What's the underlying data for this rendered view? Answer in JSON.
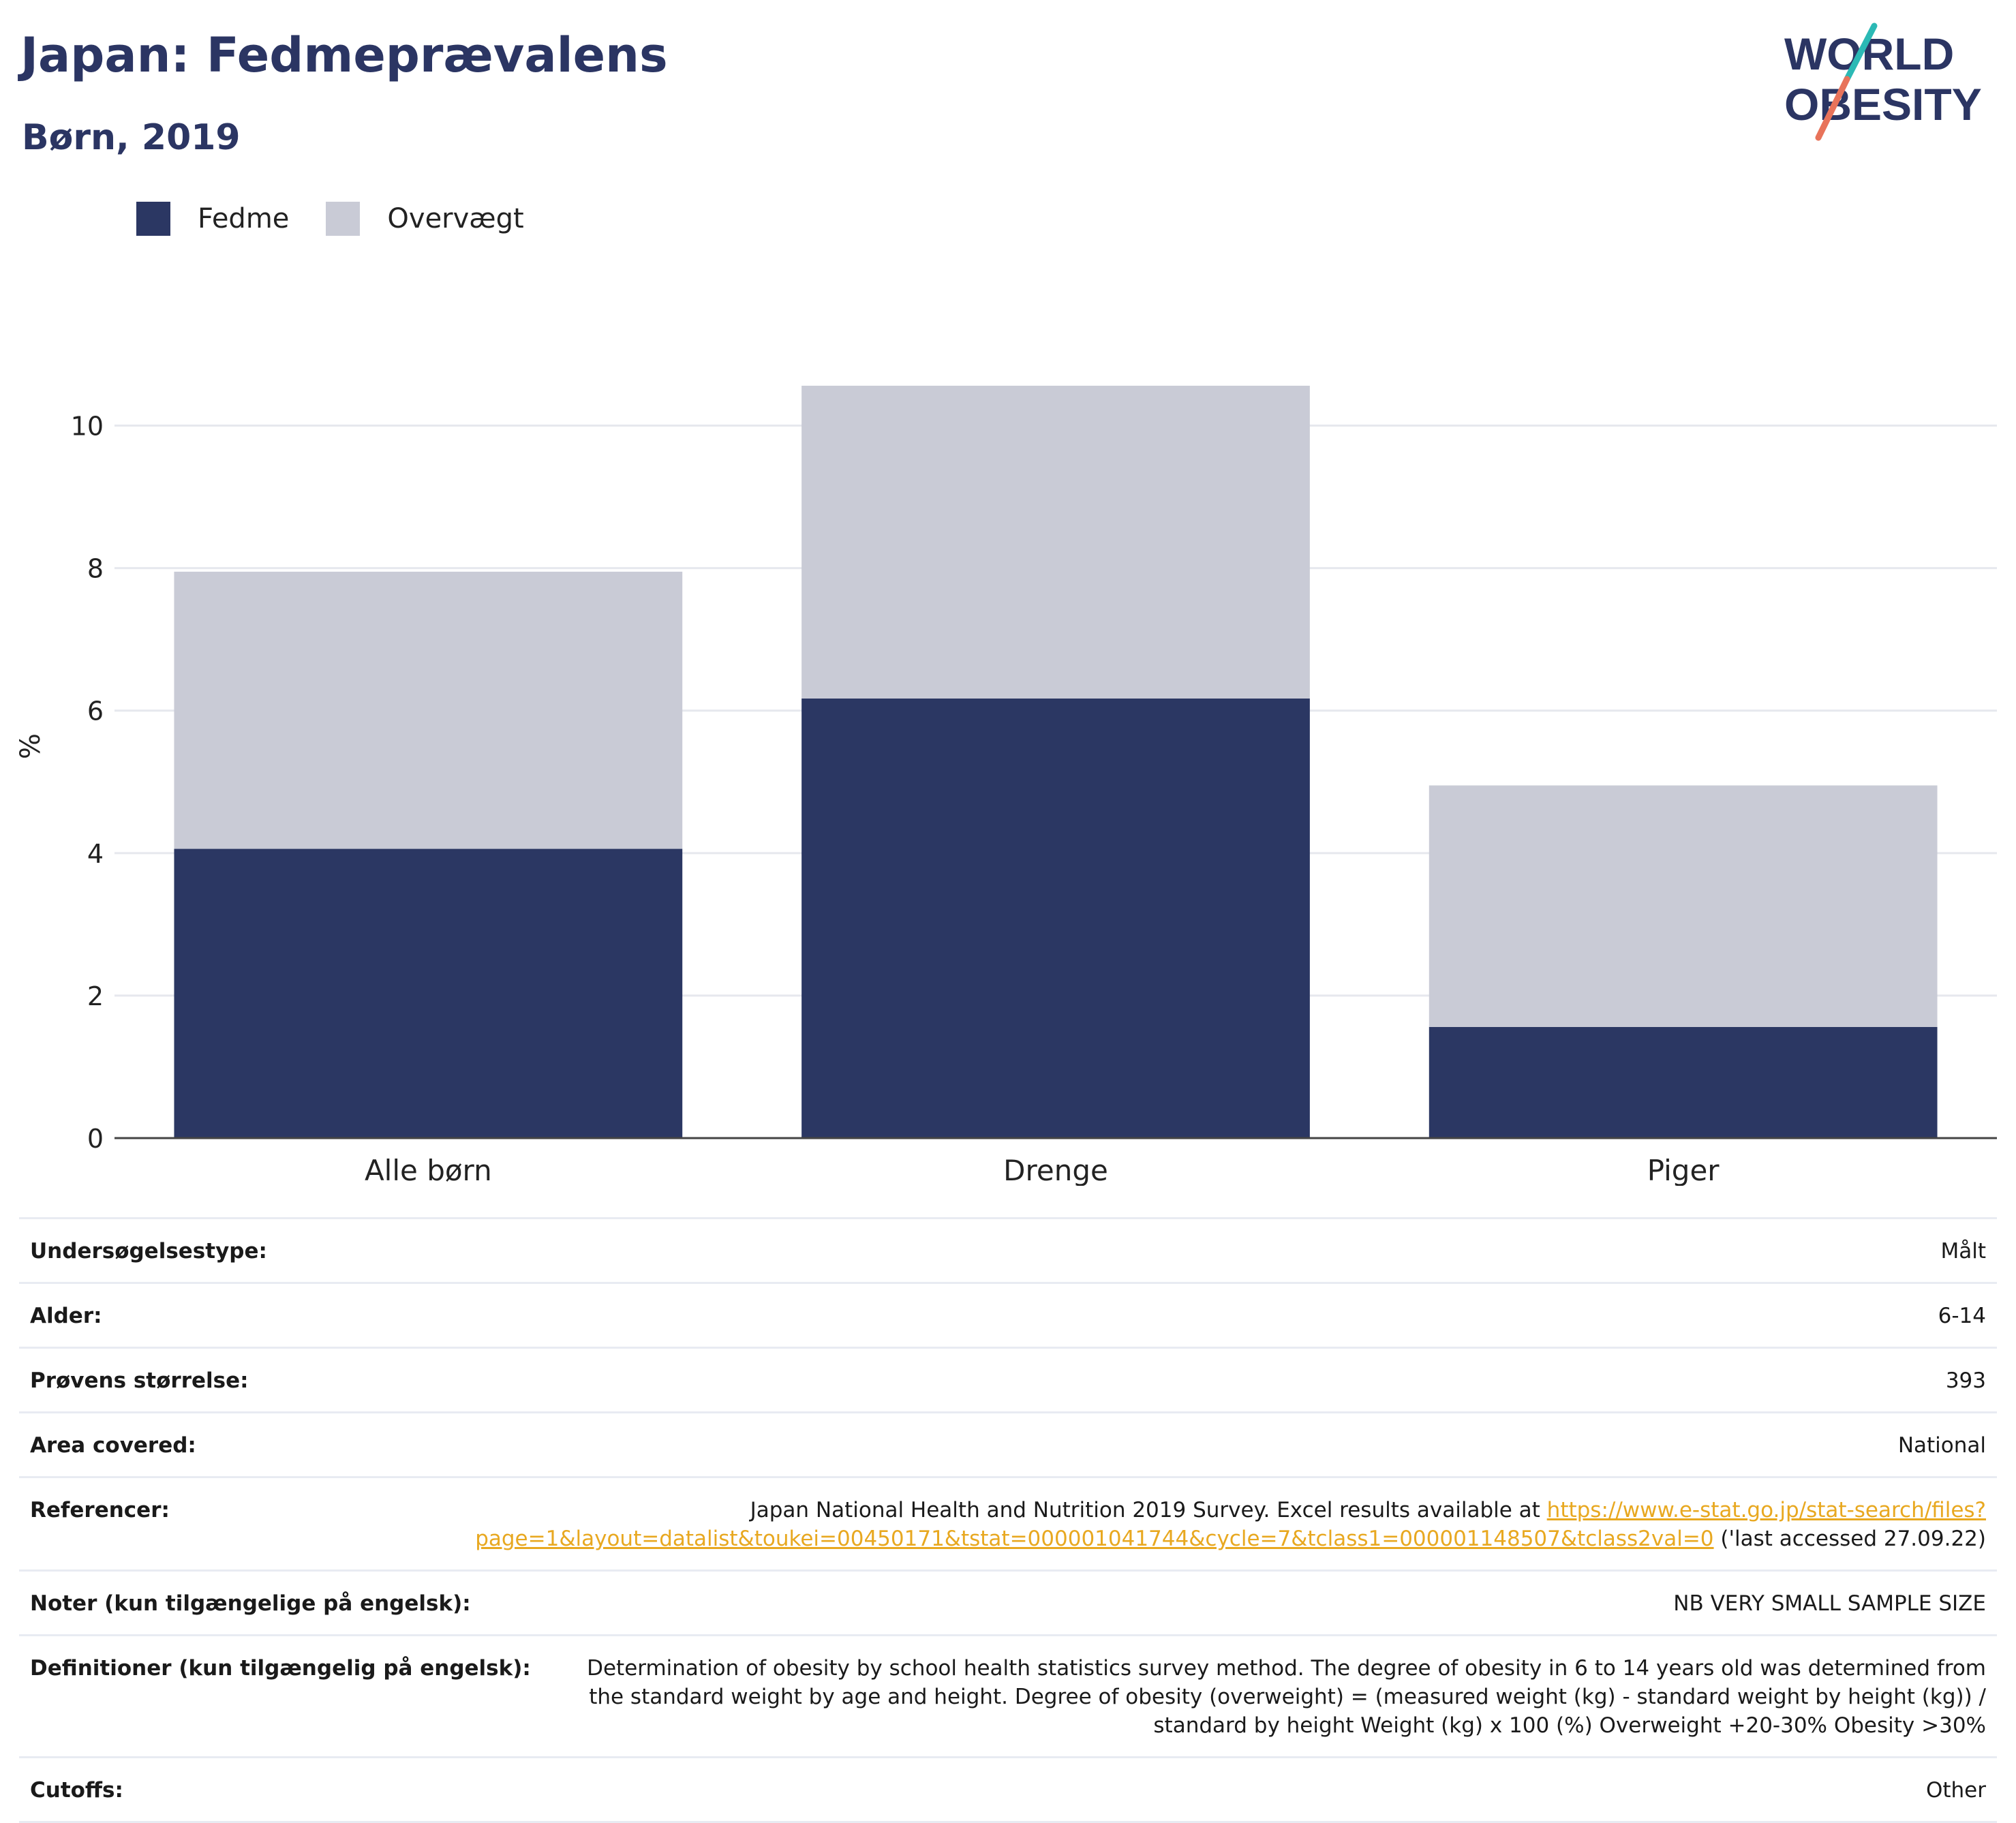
{
  "header": {
    "title": "Japan: Fedmeprævalens",
    "subtitle": "Børn, 2019"
  },
  "logo": {
    "line1": "WORLD",
    "line2": "OBESITY",
    "accent_colors": [
      "#2bb9b5",
      "#e8735a"
    ]
  },
  "legend": [
    {
      "label": "Fedme",
      "color": "#2b3763"
    },
    {
      "label": "Overvægt",
      "color": "#c9cbd6"
    }
  ],
  "chart_data": {
    "type": "bar",
    "stacked": true,
    "categories": [
      "Alle børn",
      "Drenge",
      "Piger"
    ],
    "series": [
      {
        "name": "Fedme",
        "values": [
          4.06,
          6.17,
          1.56
        ],
        "color": "#2b3763"
      },
      {
        "name": "Overvægt",
        "values": [
          3.89,
          4.39,
          3.39
        ],
        "color": "#c9cbd6"
      }
    ],
    "ylabel": "%",
    "ylim": [
      0,
      11
    ],
    "yticks": [
      0,
      2,
      4,
      6,
      8,
      10
    ],
    "grid": true,
    "legend_position": "top-left"
  },
  "info": {
    "rows": [
      {
        "label": "Undersøgelsestype:",
        "value": "Målt"
      },
      {
        "label": "Alder:",
        "value": "6-14"
      },
      {
        "label": "Prøvens størrelse:",
        "value": "393"
      },
      {
        "label": "Area covered:",
        "value": "National"
      },
      {
        "label": "Noter (kun tilgængelige på engelsk):",
        "value": "NB VERY SMALL SAMPLE SIZE"
      },
      {
        "label": "Definitioner (kun tilgængelig på engelsk):",
        "value": "Determination of obesity by school health statistics survey method. The degree of obesity in 6 to 14 years old was determined from the standard weight by age and height. Degree of obesity (overweight) = (measured weight (kg) - standard weight by height (kg)) / standard by height Weight (kg) x 100 (%) Overweight +20-30% Obesity >30%"
      },
      {
        "label": "Cutoffs:",
        "value": "Other"
      }
    ],
    "reference": {
      "label": "Referencer:",
      "text_before": "Japan National Health and Nutrition 2019 Survey. Excel results available at ",
      "link": "https://www.e-stat.go.jp/stat-search/files?page=1&layout=datalist&toukei=00450171&tstat=000001041744&cycle=7&tclass1=000001148507&tclass2val=0",
      "text_after": " ('last accessed 27.09.22)"
    }
  }
}
